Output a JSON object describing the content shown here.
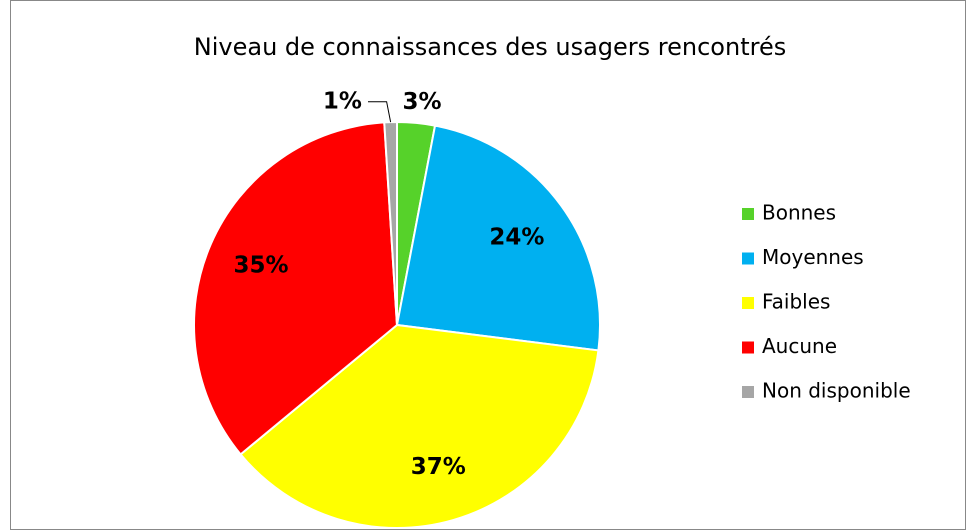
{
  "chart_data": {
    "type": "pie",
    "title": "Niveau de connaissances des usagers rencontrés",
    "categories": [
      "Bonnes",
      "Moyennes",
      "Faibles",
      "Aucune",
      "Non disponible"
    ],
    "values": [
      3,
      24,
      37,
      35,
      1
    ],
    "value_labels": [
      "3%",
      "24%",
      "37%",
      "35%",
      "1%"
    ],
    "colors": [
      "#56d22a",
      "#00b0f0",
      "#ffff00",
      "#ff0000",
      "#a6a6a6"
    ],
    "legend": "right"
  }
}
